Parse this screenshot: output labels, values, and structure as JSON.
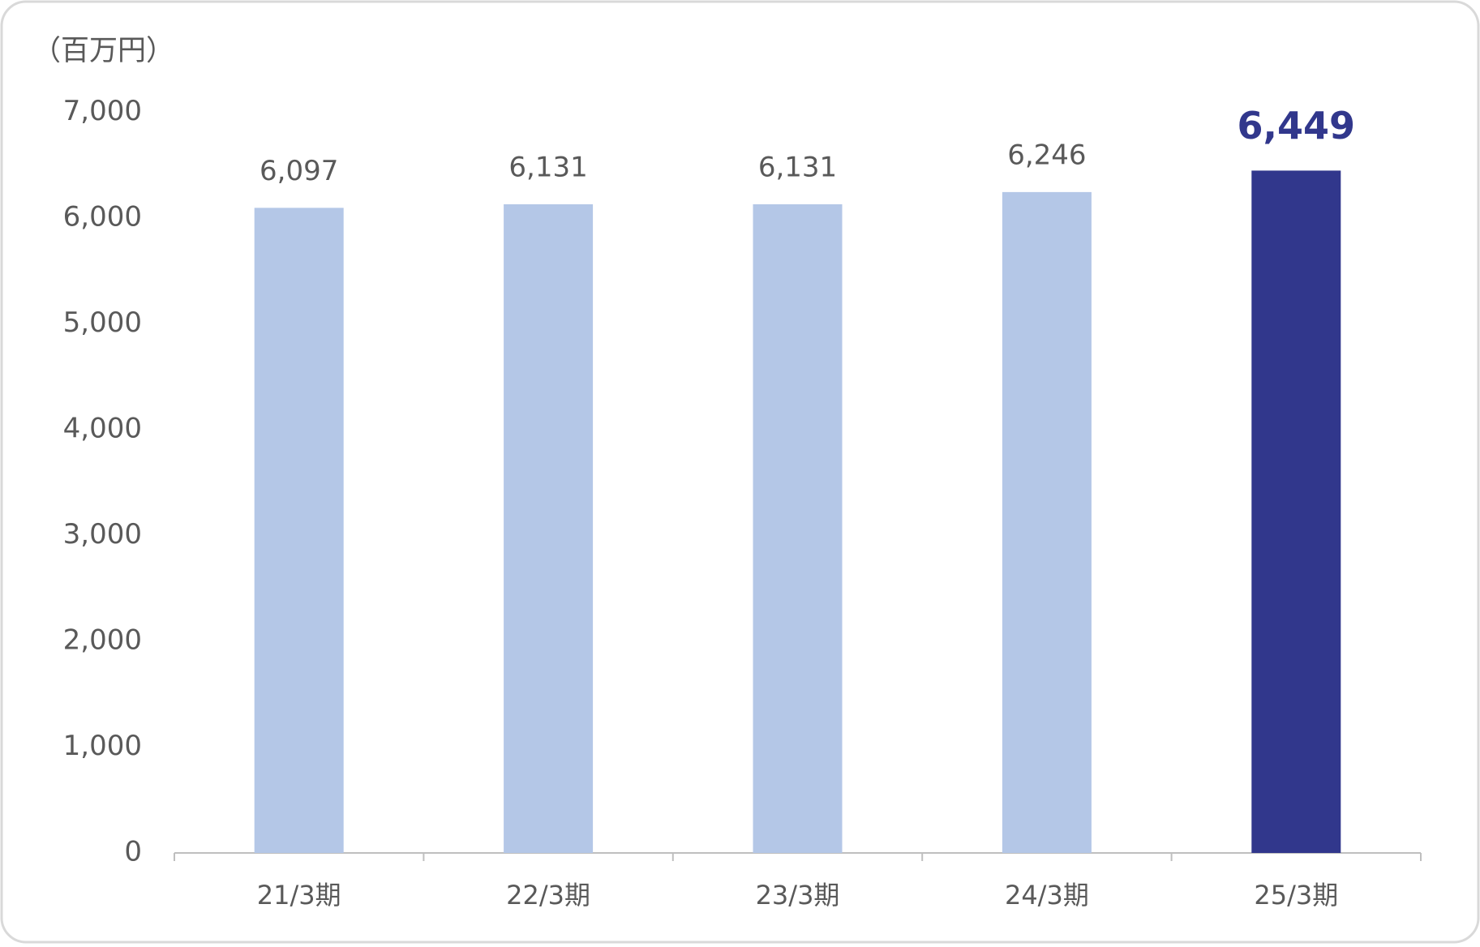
{
  "chart_data": {
    "type": "bar",
    "unit_label": "（百万円）",
    "categories": [
      "21/3期",
      "22/3期",
      "23/3期",
      "24/3期",
      "25/3期"
    ],
    "values": [
      6097,
      6131,
      6131,
      6246,
      6449
    ],
    "value_labels": [
      "6,097",
      "6,131",
      "6,131",
      "6,246",
      "6,449"
    ],
    "colors": [
      "#b4c7e7",
      "#b4c7e7",
      "#b4c7e7",
      "#b4c7e7",
      "#31378c"
    ],
    "ylim": [
      0,
      7000
    ],
    "yticks": [
      0,
      {
        "value": 1000,
        "label": "1,000"
      },
      {
        "value": 2000,
        "label": "2,000"
      },
      {
        "value": 3000,
        "label": "3,000"
      },
      {
        "value": 4000,
        "label": "4,000"
      },
      {
        "value": 5000,
        "label": "5,000"
      },
      {
        "value": 6000,
        "label": "6,000"
      },
      {
        "value": 7000,
        "label": "7,000"
      }
    ],
    "grid": false
  }
}
